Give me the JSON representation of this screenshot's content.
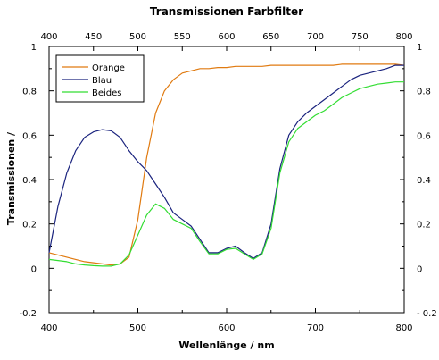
{
  "chart_data": {
    "type": "line",
    "title": "Transmissionen Farbfilter",
    "xlabel": "Wellenlänge / nm",
    "ylabel": "Transmissionen /",
    "xlim": [
      400,
      800
    ],
    "ylim": [
      -0.2,
      1
    ],
    "x_ticks": [
      400,
      500,
      600,
      700,
      800
    ],
    "x_ticks_top": [
      400,
      450,
      500,
      550,
      600,
      650,
      700,
      750,
      800
    ],
    "y_ticks": [
      -0.2,
      0,
      0.2,
      0.4,
      0.6,
      0.8,
      1
    ],
    "y_tick_labels": [
      "-0.2",
      "0",
      "0.2",
      "0.4",
      "0.6",
      "0.8",
      "1"
    ],
    "y_tick_labels_right": [
      "- 0.2",
      "0",
      "0.2",
      "0.4",
      "0.6",
      "0.8",
      "1"
    ],
    "grid": false,
    "legend_position": "top-left",
    "x": [
      400,
      410,
      420,
      430,
      440,
      450,
      460,
      470,
      480,
      490,
      500,
      510,
      520,
      530,
      540,
      550,
      560,
      570,
      580,
      590,
      600,
      610,
      620,
      630,
      640,
      650,
      660,
      670,
      680,
      690,
      700,
      710,
      720,
      730,
      740,
      750,
      760,
      770,
      780,
      790,
      800
    ],
    "series": [
      {
        "name": "Orange",
        "color": "#e07a10",
        "values": [
          0.07,
          0.06,
          0.05,
          0.04,
          0.03,
          0.025,
          0.02,
          0.015,
          0.02,
          0.05,
          0.22,
          0.5,
          0.7,
          0.8,
          0.85,
          0.88,
          0.89,
          0.9,
          0.9,
          0.905,
          0.905,
          0.91,
          0.91,
          0.91,
          0.91,
          0.915,
          0.915,
          0.915,
          0.915,
          0.915,
          0.915,
          0.915,
          0.915,
          0.92,
          0.92,
          0.92,
          0.92,
          0.92,
          0.92,
          0.92,
          0.915
        ]
      },
      {
        "name": "Blau",
        "color": "#1a237e",
        "values": [
          0.07,
          0.28,
          0.43,
          0.53,
          0.59,
          0.615,
          0.625,
          0.62,
          0.59,
          0.53,
          0.48,
          0.44,
          0.38,
          0.32,
          0.25,
          0.22,
          0.19,
          0.13,
          0.07,
          0.07,
          0.09,
          0.1,
          0.07,
          0.045,
          0.07,
          0.2,
          0.45,
          0.6,
          0.66,
          0.7,
          0.73,
          0.76,
          0.79,
          0.82,
          0.85,
          0.87,
          0.88,
          0.89,
          0.9,
          0.915,
          0.915
        ]
      },
      {
        "name": "Beides",
        "color": "#33dd33",
        "values": [
          0.04,
          0.035,
          0.03,
          0.02,
          0.015,
          0.012,
          0.01,
          0.01,
          0.02,
          0.06,
          0.15,
          0.24,
          0.29,
          0.27,
          0.22,
          0.2,
          0.18,
          0.12,
          0.065,
          0.065,
          0.085,
          0.09,
          0.065,
          0.04,
          0.065,
          0.18,
          0.43,
          0.57,
          0.63,
          0.66,
          0.69,
          0.71,
          0.74,
          0.77,
          0.79,
          0.81,
          0.82,
          0.83,
          0.835,
          0.84,
          0.84
        ]
      }
    ]
  }
}
